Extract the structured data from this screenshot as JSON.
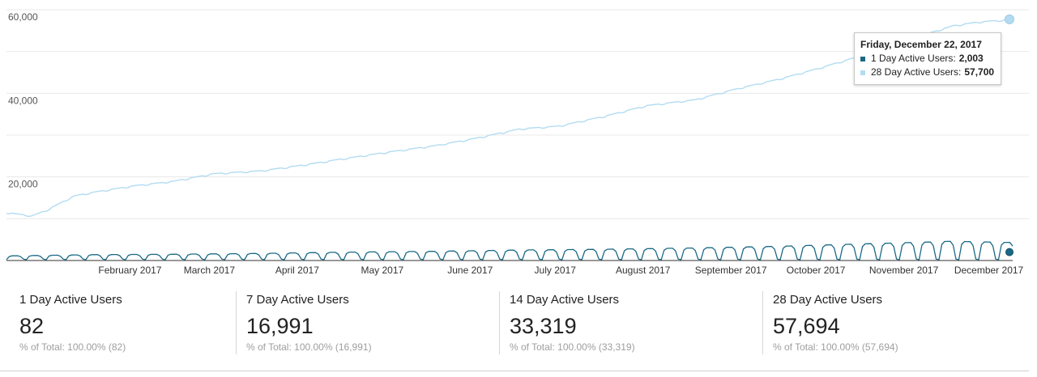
{
  "chart_data": {
    "type": "line",
    "y_ticks": [
      "60,000",
      "40,000",
      "20,000"
    ],
    "ylim": [
      0,
      60000
    ],
    "x_tick_labels": [
      "February 2017",
      "March 2017",
      "April 2017",
      "May 2017",
      "June 2017",
      "July 2017",
      "August 2017",
      "September 2017",
      "October 2017",
      "November 2017",
      "December 2017"
    ],
    "x_range": [
      "2017-01-01",
      "2017-12-22"
    ],
    "grid": true,
    "series": [
      {
        "name": "28 Day Active Users",
        "color": "#b3dcf2",
        "points": [
          [
            "2017-01-01",
            11500
          ],
          [
            "2017-01-10",
            10700
          ],
          [
            "2017-01-15",
            12000
          ],
          [
            "2017-01-20",
            13800
          ],
          [
            "2017-01-25",
            15500
          ],
          [
            "2017-02-01",
            16400
          ],
          [
            "2017-02-15",
            17900
          ],
          [
            "2017-03-01",
            19000
          ],
          [
            "2017-03-15",
            20800
          ],
          [
            "2017-04-01",
            21500
          ],
          [
            "2017-04-15",
            22800
          ],
          [
            "2017-05-01",
            24500
          ],
          [
            "2017-05-15",
            25900
          ],
          [
            "2017-06-01",
            27500
          ],
          [
            "2017-06-15",
            29200
          ],
          [
            "2017-07-01",
            31500
          ],
          [
            "2017-07-15",
            32200
          ],
          [
            "2017-08-01",
            34700
          ],
          [
            "2017-08-15",
            37100
          ],
          [
            "2017-09-01",
            38500
          ],
          [
            "2017-09-15",
            41000
          ],
          [
            "2017-10-01",
            43500
          ],
          [
            "2017-10-15",
            46100
          ],
          [
            "2017-11-01",
            49500
          ],
          [
            "2017-11-15",
            52800
          ],
          [
            "2017-12-01",
            56200
          ],
          [
            "2017-12-10",
            57100
          ],
          [
            "2017-12-22",
            57700
          ]
        ]
      },
      {
        "name": "1 Day Active Users",
        "color": "#1a6985",
        "weekly_cycle": true,
        "weekday_peak_by_month": [
          [
            "2017-01-01",
            1100
          ],
          [
            "2017-02-01",
            1400
          ],
          [
            "2017-03-01",
            1500
          ],
          [
            "2017-04-01",
            1700
          ],
          [
            "2017-05-01",
            2000
          ],
          [
            "2017-06-01",
            2200
          ],
          [
            "2017-07-01",
            2500
          ],
          [
            "2017-08-01",
            2700
          ],
          [
            "2017-09-01",
            3000
          ],
          [
            "2017-10-01",
            3400
          ],
          [
            "2017-11-01",
            4000
          ],
          [
            "2017-12-01",
            4600
          ],
          [
            "2017-12-22",
            4300
          ]
        ],
        "weekend_low": 200
      }
    ],
    "tooltip": {
      "date": "Friday, December 22, 2017",
      "rows": [
        {
          "label": "1 Day Active Users: ",
          "value": "2,003",
          "color": "#1a6985"
        },
        {
          "label": "28 Day Active Users: ",
          "value": "57,700",
          "color": "#b3dcf2"
        }
      ]
    }
  },
  "scorecards": [
    {
      "label": "1 Day Active Users",
      "value": "82",
      "pct_prefix": "% of Total: ",
      "pct": "100.00% (82)"
    },
    {
      "label": "7 Day Active Users",
      "value": "16,991",
      "pct_prefix": "% of Total: ",
      "pct": "100.00% (16,991)"
    },
    {
      "label": "14 Day Active Users",
      "value": "33,319",
      "pct_prefix": "% of Total: ",
      "pct": "100.00% (33,319)"
    },
    {
      "label": "28 Day Active Users",
      "value": "57,694",
      "pct_prefix": "% of Total: ",
      "pct": "100.00% (57,694)"
    }
  ]
}
